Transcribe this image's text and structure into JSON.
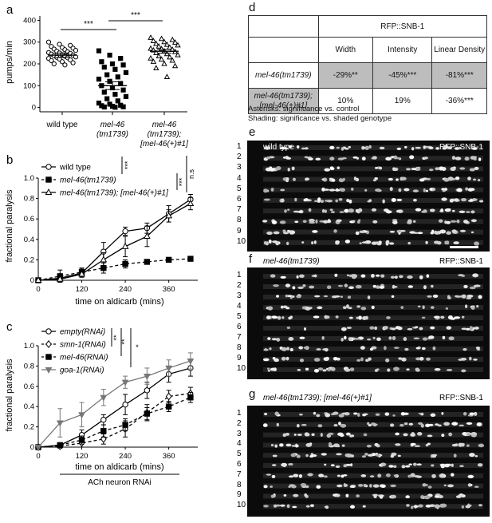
{
  "panel_a": {
    "label": "a",
    "ylabel": "pumps/min",
    "yticks": [
      "0",
      "100",
      "200",
      "300",
      "400"
    ],
    "groups": [
      "wild type",
      "mel-46 (tm1739)",
      "mel-46 (tm1739); [mel-46(+)#1]"
    ],
    "group_lines": [
      [
        "wild type"
      ],
      [
        "mel-46",
        "(tm1739)"
      ],
      [
        "mel-46",
        "(tm1739);",
        "[mel-46(+)#1]"
      ]
    ],
    "sig": [
      "***",
      "***"
    ]
  },
  "panel_b": {
    "label": "b",
    "xlabel": "time on aldicarb (mins)",
    "ylabel": "fractional paralysis",
    "legend": [
      "wild type",
      "mel-46(tm1739)",
      "mel-46(tm1739); [mel-46(+)#1]"
    ],
    "sig": [
      "***",
      "***",
      "n.s"
    ]
  },
  "panel_c": {
    "label": "c",
    "xlabel": "time on aldicarb (mins)",
    "ylabel": "fractional paralysis",
    "legend": [
      "empty(RNAi)",
      "smn-1(RNAi)",
      "mel-46(RNAi)",
      "goa-1(RNAi)"
    ],
    "sig": [
      "**",
      "**",
      "*"
    ],
    "footer": "ACh neuron RNAi"
  },
  "panel_d": {
    "label": "d",
    "header": "RFP::SNB-1",
    "columns": [
      "Width",
      "Intensity",
      "Linear Density"
    ],
    "rows": [
      {
        "name": "mel-46(tm1739)",
        "values": [
          "-29%**",
          "-45%***",
          "-81%***"
        ]
      },
      {
        "name": "mel-46(tm1739); [mel-46(+)#1]",
        "values": [
          "10%",
          "19%",
          "-36%***"
        ]
      }
    ],
    "note1": "Asterisks: significance vs. control",
    "note2": "Shading: significance vs. shaded genotype"
  },
  "micrographs": [
    {
      "panel": "e",
      "genotype": "wild type",
      "marker": "RFP::SNB-1"
    },
    {
      "panel": "f",
      "genotype": "mel-46(tm1739)",
      "marker": "RFP::SNB-1"
    },
    {
      "panel": "g",
      "genotype": "mel-46(tm1739); [mel-46(+)#1]",
      "marker": "RFP::SNB-1"
    }
  ],
  "row_numbers": [
    "1",
    "2",
    "3",
    "4",
    "5",
    "6",
    "7",
    "8",
    "9",
    "10"
  ],
  "chart_data": [
    {
      "type": "scatter",
      "panel": "a",
      "categories": [
        "wild type",
        "mel-46 (tm1739)",
        "mel-46 (tm1739); [mel-46(+)#1]"
      ],
      "ylabel": "pumps/min",
      "ylim": [
        -20,
        420
      ],
      "series": [
        {
          "name": "wild type",
          "marker": "circle",
          "mean": 240,
          "sem": 10,
          "values": [
            300,
            290,
            285,
            280,
            275,
            272,
            268,
            265,
            262,
            258,
            255,
            252,
            250,
            248,
            245,
            242,
            240,
            238,
            235,
            232,
            230,
            228,
            225,
            222,
            218,
            215,
            210,
            205,
            200,
            195
          ]
        },
        {
          "name": "mel-46 (tm1739)",
          "marker": "square",
          "mean": 100,
          "sem": 18,
          "values": [
            260,
            240,
            225,
            210,
            200,
            195,
            185,
            175,
            160,
            150,
            140,
            130,
            120,
            110,
            100,
            90,
            80,
            70,
            60,
            50,
            40,
            30,
            20,
            15,
            10,
            8,
            5,
            3,
            2,
            1
          ]
        },
        {
          "name": "mel-46 (tm1739); [mel-46(+)#1]",
          "marker": "triangle",
          "mean": 258,
          "sem": 9,
          "values": [
            320,
            315,
            310,
            305,
            300,
            298,
            292,
            288,
            285,
            280,
            275,
            270,
            268,
            265,
            262,
            258,
            255,
            250,
            245,
            240,
            235,
            230,
            225,
            220,
            215,
            210,
            200,
            190,
            180,
            140
          ]
        }
      ]
    },
    {
      "type": "line",
      "panel": "b",
      "x": [
        0,
        60,
        120,
        180,
        240,
        300,
        360,
        420
      ],
      "xticks": [
        0,
        120,
        240,
        360
      ],
      "xlabel": "time on aldicarb (mins)",
      "ylabel": "fractional paralysis",
      "xlim": [
        0,
        440
      ],
      "ylim": [
        0,
        1.0
      ],
      "yticks": [
        0,
        0.2,
        0.4,
        0.6,
        0.8,
        1.0
      ],
      "series": [
        {
          "name": "wild type",
          "marker": "circle",
          "dashed": false,
          "values": [
            0,
            0.02,
            0.07,
            0.28,
            0.48,
            0.51,
            0.65,
            0.79
          ],
          "err": [
            0,
            0.02,
            0.04,
            0.09,
            0.04,
            0.05,
            0.08,
            0.05
          ]
        },
        {
          "name": "mel-46(tm1739)",
          "marker": "square",
          "dashed": true,
          "values": [
            0,
            0.04,
            0.08,
            0.12,
            0.16,
            0.18,
            0.2,
            0.21
          ],
          "err": [
            0,
            0.06,
            0.04,
            0.05,
            0.04,
            0,
            0,
            0
          ]
        },
        {
          "name": "mel-46(tm1739); [mel-46(+)#1]",
          "marker": "triangle",
          "dashed": false,
          "values": [
            0,
            0.01,
            0.06,
            0.2,
            0.33,
            0.43,
            0.63,
            0.75
          ],
          "err": [
            0,
            0.02,
            0.03,
            0.07,
            0.1,
            0.1,
            0.06,
            0.06
          ]
        }
      ]
    },
    {
      "type": "line",
      "panel": "c",
      "x": [
        0,
        60,
        120,
        180,
        240,
        300,
        360,
        420
      ],
      "xticks": [
        0,
        120,
        240,
        360
      ],
      "xlabel": "time on aldicarb (mins)",
      "ylabel": "fractional paralysis",
      "xlim": [
        0,
        440
      ],
      "ylim": [
        0,
        1.0
      ],
      "yticks": [
        0,
        0.2,
        0.4,
        0.6,
        0.8,
        1.0
      ],
      "series": [
        {
          "name": "empty(RNAi)",
          "marker": "circle",
          "dashed": false,
          "color": "#000000",
          "values": [
            0,
            0.02,
            0.12,
            0.27,
            0.42,
            0.56,
            0.72,
            0.78
          ],
          "err": [
            0,
            0.02,
            0.05,
            0.05,
            0.1,
            0.08,
            0.08,
            0.08
          ]
        },
        {
          "name": "smn-1(RNAi)",
          "marker": "diamond",
          "dashed": true,
          "color": "#000000",
          "values": [
            0,
            0.01,
            0.04,
            0.08,
            0.18,
            0.34,
            0.5,
            0.53
          ],
          "err": [
            0,
            0.02,
            0.04,
            0.05,
            0.08,
            0.08,
            0.06,
            0.06
          ]
        },
        {
          "name": "mel-46(RNAi)",
          "marker": "square",
          "dashed": true,
          "color": "#000000",
          "values": [
            0,
            0.02,
            0.07,
            0.16,
            0.22,
            0.33,
            0.4,
            0.49
          ],
          "err": [
            0,
            0.02,
            0.04,
            0.06,
            0.06,
            0.06,
            0.05,
            0.05
          ]
        },
        {
          "name": "goa-1(RNAi)",
          "marker": "triangle-down",
          "dashed": false,
          "color": "#777777",
          "values": [
            0,
            0.24,
            0.32,
            0.49,
            0.64,
            0.7,
            0.78,
            0.85
          ],
          "err": [
            0,
            0.14,
            0.12,
            0.08,
            0.06,
            0.08,
            0.08,
            0.08
          ]
        }
      ]
    }
  ]
}
